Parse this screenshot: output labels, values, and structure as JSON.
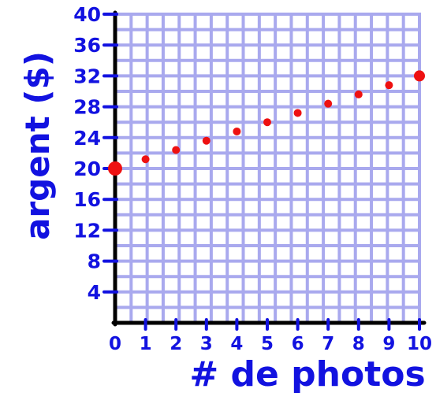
{
  "chart_data": {
    "type": "scatter",
    "xlabel": "# de photos",
    "ylabel": "argent ($)",
    "x_ticks": [
      "0",
      "1",
      "2",
      "3",
      "4",
      "5",
      "6",
      "7",
      "8",
      "9",
      "10"
    ],
    "y_ticks": [
      "4",
      "8",
      "12",
      "16",
      "20",
      "24",
      "28",
      "32",
      "36",
      "40"
    ],
    "xlim": [
      0,
      10
    ],
    "ylim": [
      0,
      40
    ],
    "grid": true,
    "points": [
      {
        "x": 0,
        "y": 20
      },
      {
        "x": 1,
        "y": 21.2
      },
      {
        "x": 2,
        "y": 22.4
      },
      {
        "x": 3,
        "y": 23.6
      },
      {
        "x": 4,
        "y": 24.8
      },
      {
        "x": 5,
        "y": 26
      },
      {
        "x": 6,
        "y": 27.2
      },
      {
        "x": 7,
        "y": 28.4
      },
      {
        "x": 8,
        "y": 29.6
      },
      {
        "x": 9,
        "y": 30.8
      },
      {
        "x": 10,
        "y": 32
      }
    ],
    "colors": {
      "grid": "#a9a9ee",
      "axis": "#000000",
      "ink": "#1212e0",
      "point": "#ee1111"
    }
  }
}
